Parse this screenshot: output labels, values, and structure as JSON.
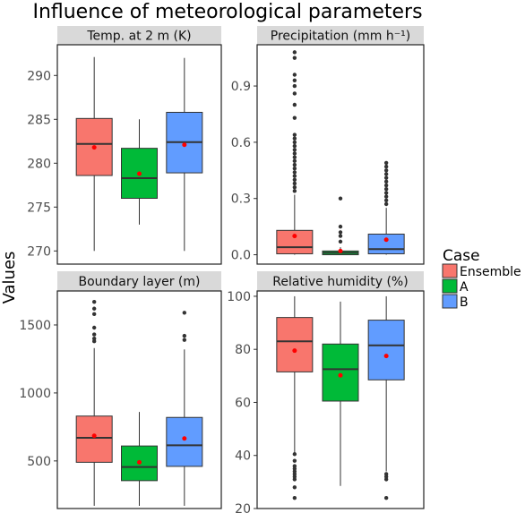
{
  "title": "Influence of meteorological parameters",
  "y_axis_label": "Values",
  "legend": {
    "title": "Case",
    "items": [
      {
        "label": "Ensemble",
        "color": "#F8766D"
      },
      {
        "label": "A",
        "color": "#00BA38"
      },
      {
        "label": "B",
        "color": "#619CFF"
      }
    ]
  },
  "colors": {
    "ensemble": "#F8766D",
    "a": "#00BA38",
    "b": "#619CFF",
    "mean": "#FF0000",
    "outlier": "#333333",
    "strip": "#D9D9D9"
  },
  "chart_data": [
    {
      "type": "box",
      "title": "Temp. at 2 m (K)",
      "ylim": [
        268.5,
        293.5
      ],
      "yticks": [
        270,
        275,
        280,
        285,
        290
      ],
      "ytick_labels": [
        "270",
        "275",
        "280",
        "285",
        "290"
      ],
      "series": [
        {
          "name": "Ensemble",
          "whisker_low": 270,
          "q1": 278.6,
          "median": 282.2,
          "q3": 285.1,
          "whisker_high": 292.1,
          "mean": 281.8,
          "outliers": []
        },
        {
          "name": "A",
          "whisker_low": 273,
          "q1": 276,
          "median": 278.3,
          "q3": 281.7,
          "whisker_high": 285,
          "mean": 278.8,
          "outliers": []
        },
        {
          "name": "B",
          "whisker_low": 270,
          "q1": 278.9,
          "median": 282.4,
          "q3": 285.8,
          "whisker_high": 292,
          "mean": 282.1,
          "outliers": []
        }
      ]
    },
    {
      "type": "box",
      "title": "Precipitation (mm h⁻¹)",
      "ylim": [
        -0.05,
        1.12
      ],
      "yticks": [
        0,
        0.3,
        0.6,
        0.9
      ],
      "ytick_labels": [
        "0.0",
        "0.3",
        "0.6",
        "0.9"
      ],
      "series": [
        {
          "name": "Ensemble",
          "whisker_low": 0,
          "q1": 0.005,
          "median": 0.04,
          "q3": 0.13,
          "whisker_high": 0.32,
          "mean": 0.1,
          "outliers": [
            0.34,
            0.36,
            0.38,
            0.4,
            0.42,
            0.44,
            0.46,
            0.48,
            0.5,
            0.52,
            0.54,
            0.56,
            0.58,
            0.6,
            0.62,
            0.64,
            0.73,
            0.8,
            0.86,
            0.9,
            0.93,
            0.96,
            1.05,
            1.08
          ]
        },
        {
          "name": "A",
          "whisker_low": 0,
          "q1": 0.0,
          "median": 0.01,
          "q3": 0.02,
          "whisker_high": 0.04,
          "mean": 0.02,
          "outliers": [
            0.07,
            0.1,
            0.12,
            0.15,
            0.3
          ]
        },
        {
          "name": "B",
          "whisker_low": 0,
          "q1": 0.005,
          "median": 0.03,
          "q3": 0.11,
          "whisker_high": 0.25,
          "mean": 0.08,
          "outliers": [
            0.27,
            0.29,
            0.31,
            0.33,
            0.35,
            0.37,
            0.39,
            0.41,
            0.43,
            0.45,
            0.47,
            0.49
          ]
        }
      ]
    },
    {
      "type": "box",
      "title": "Boundary layer (m)",
      "ylim": [
        150,
        1750
      ],
      "yticks": [
        500,
        1000,
        1500
      ],
      "ytick_labels": [
        "500",
        "1000",
        "1500"
      ],
      "series": [
        {
          "name": "Ensemble",
          "whisker_low": 170,
          "q1": 490,
          "median": 670,
          "q3": 830,
          "whisker_high": 1330,
          "mean": 685,
          "outliers": [
            1380,
            1400,
            1430,
            1480,
            1580,
            1620,
            1670
          ]
        },
        {
          "name": "A",
          "whisker_low": 170,
          "q1": 355,
          "median": 455,
          "q3": 610,
          "whisker_high": 860,
          "mean": 490,
          "outliers": []
        },
        {
          "name": "B",
          "whisker_low": 170,
          "q1": 460,
          "median": 615,
          "q3": 820,
          "whisker_high": 1320,
          "mean": 665,
          "outliers": [
            1390,
            1420,
            1590
          ]
        }
      ]
    },
    {
      "type": "box",
      "title": "Relative humidity (%)",
      "ylim": [
        20,
        102
      ],
      "yticks": [
        20,
        40,
        60,
        80,
        100
      ],
      "ytick_labels": [
        "20",
        "40",
        "60",
        "80",
        "100"
      ],
      "series": [
        {
          "name": "Ensemble",
          "whisker_low": 40,
          "q1": 71.5,
          "median": 83,
          "q3": 92,
          "whisker_high": 100,
          "mean": 79.5,
          "outliers": [
            24,
            28,
            31,
            32,
            33,
            34,
            35,
            36,
            38,
            40.5
          ]
        },
        {
          "name": "A",
          "whisker_low": 28.5,
          "q1": 60.5,
          "median": 72.5,
          "q3": 82,
          "whisker_high": 98,
          "mean": 70.2,
          "outliers": []
        },
        {
          "name": "B",
          "whisker_low": 34,
          "q1": 68.5,
          "median": 81.5,
          "q3": 91,
          "whisker_high": 100,
          "mean": 77.5,
          "outliers": [
            24,
            31,
            32,
            33
          ]
        }
      ]
    }
  ]
}
